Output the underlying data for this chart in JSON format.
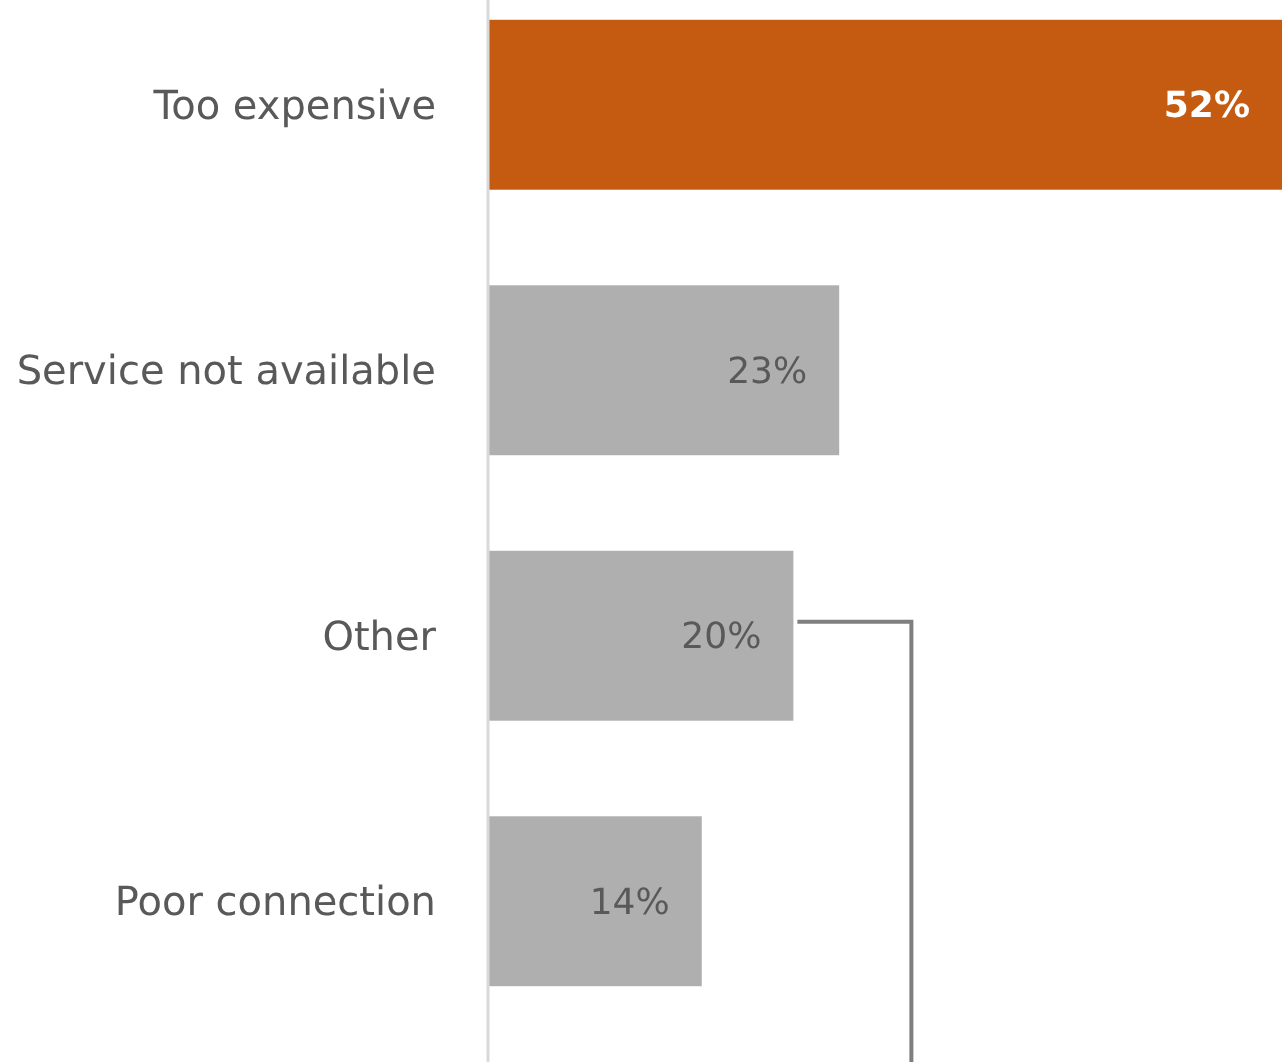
{
  "chart_data": {
    "type": "bar",
    "orientation": "horizontal",
    "categories": [
      "Too expensive",
      "Service not available",
      "Other",
      "Poor connection"
    ],
    "values": [
      52,
      23,
      20,
      14
    ],
    "colors": [
      "#c55a11",
      "#afafaf",
      "#afafaf",
      "#afafaf"
    ],
    "value_labels": [
      "52%",
      "23%",
      "20%",
      "14%"
    ]
  }
}
